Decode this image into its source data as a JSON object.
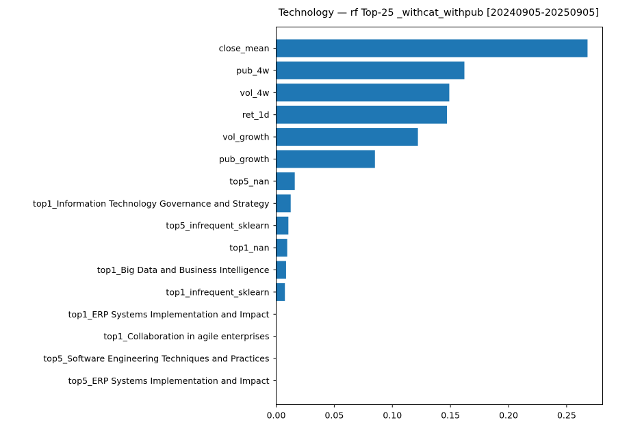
{
  "chart_data": {
    "type": "bar",
    "orientation": "horizontal",
    "title": "Technology — rf Top-25 _withcat_withpub [20240905-20250905]",
    "xlabel": "",
    "ylabel": "",
    "xlim": [
      0,
      0.281
    ],
    "xticks": [
      0.0,
      0.05,
      0.1,
      0.15,
      0.2,
      0.25
    ],
    "xtick_labels": [
      "0.00",
      "0.05",
      "0.10",
      "0.15",
      "0.20",
      "0.25"
    ],
    "grid": false,
    "bar_color": "#1f77b4",
    "categories": [
      "close_mean",
      "pub_4w",
      "vol_4w",
      "ret_1d",
      "vol_growth",
      "pub_growth",
      "top5_nan",
      "top1_Information Technology Governance and Strategy",
      "top5_infrequent_sklearn",
      "top1_nan",
      "top1_Big Data and Business Intelligence",
      "top1_infrequent_sklearn",
      "top1_ERP Systems Implementation and Impact",
      "top1_Collaboration in agile enterprises",
      "top5_Software Engineering Techniques and Practices",
      "top5_ERP Systems Implementation and Impact"
    ],
    "values": [
      0.268,
      0.162,
      0.149,
      0.147,
      0.122,
      0.085,
      0.016,
      0.0125,
      0.0105,
      0.0095,
      0.0085,
      0.0075,
      0.0,
      0.0,
      0.0,
      0.0
    ]
  }
}
